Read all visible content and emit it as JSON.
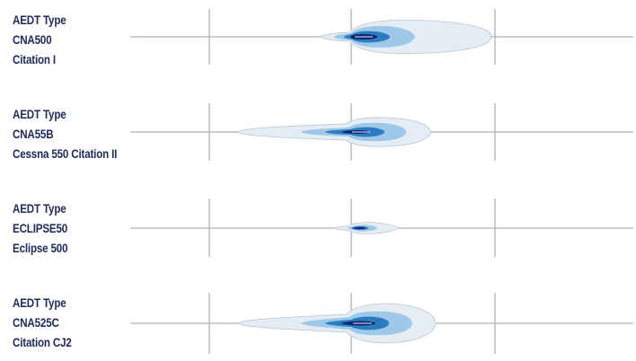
{
  "rows": [
    {
      "line1": "AEDT Type",
      "line2": "CNA500",
      "line3": "Citation I",
      "shape": "cna500"
    },
    {
      "line1": "AEDT Type",
      "line2": "CNA55B",
      "line3": "Cessna 550 Citation II",
      "shape": "cna55b"
    },
    {
      "line1": "AEDT Type",
      "line2": "ECLIPSE50",
      "line3": "Eclipse 500",
      "shape": "eclipse50"
    },
    {
      "line1": "AEDT Type",
      "line2": "CNA525C",
      "line3": "Citation CJ2",
      "shape": "cna525c"
    }
  ],
  "colors": {
    "axis": "#a9b4c4",
    "band_light": "#e6ecf3",
    "band_mid": "#9ec8e8",
    "band_dark": "#2c7cc1",
    "band_core": "#10266a",
    "text": "#1f2a5c"
  }
}
